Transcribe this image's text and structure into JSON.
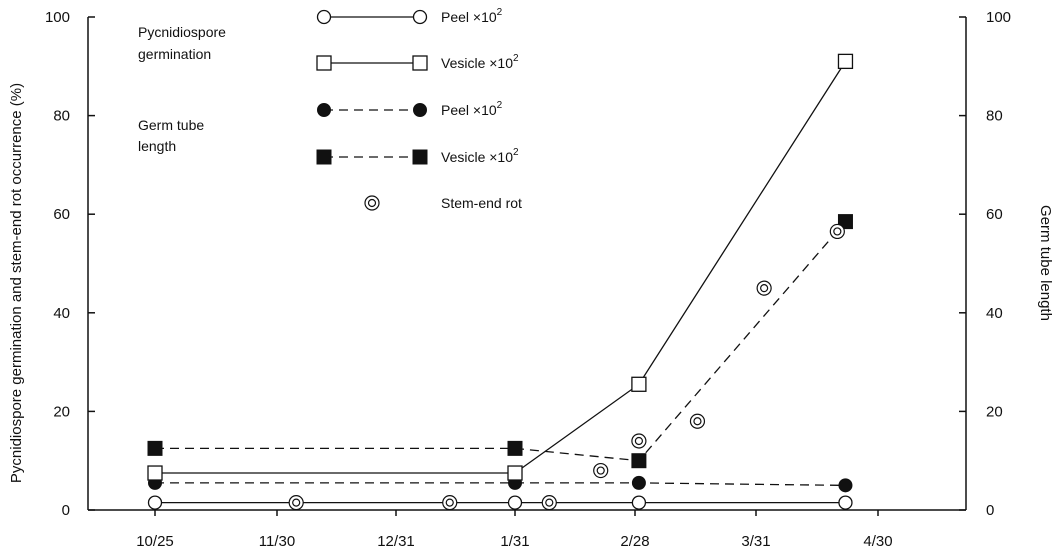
{
  "chart_data": {
    "type": "line",
    "ylabel": "Pycnidiospore germination and stem-end rot occurrence (%)",
    "y2label": "Germ tube length",
    "ylim": [
      0,
      100
    ],
    "y2lim": [
      0,
      100
    ],
    "y_ticks": [
      "0",
      "20",
      "40",
      "60",
      "80",
      "100"
    ],
    "y2_ticks": [
      "0",
      "20",
      "40",
      "60",
      "80",
      "100"
    ],
    "x_ticks": [
      "10/25",
      "11/30",
      "12/31",
      "1/31",
      "2/28",
      "3/31",
      "4/30"
    ],
    "legend": {
      "group_pycnidiospore": "Pycnidiospore germination",
      "group_germ_tube_line1": "Germ tube",
      "group_germ_tube_line2": "length",
      "entries": [
        {
          "label": "Peel ×10",
          "sup": "2",
          "marker": "open-circle",
          "line": "solid"
        },
        {
          "label": "Vesicle ×10",
          "sup": "2",
          "marker": "open-square",
          "line": "solid"
        },
        {
          "label": "Peel ×10",
          "sup": "2",
          "marker": "filled-circle",
          "line": "dashed"
        },
        {
          "label": "Vesicle ×10",
          "sup": "2",
          "marker": "filled-square",
          "line": "dashed"
        },
        {
          "label": "Stem-end rot",
          "sup": "",
          "marker": "double-circle",
          "line": "none"
        }
      ]
    },
    "series": [
      {
        "key": "germ_peel",
        "marker": "open-circle",
        "line": "solid",
        "x": [
          "10/25",
          "1/31",
          "3/1",
          "4/22"
        ],
        "y": [
          1.5,
          1.5,
          1.5,
          1.5
        ]
      },
      {
        "key": "germ_vesicle",
        "marker": "open-square",
        "line": "solid",
        "x": [
          "10/25",
          "1/31",
          "3/1",
          "4/22"
        ],
        "y": [
          7.5,
          7.5,
          25.5,
          91
        ]
      },
      {
        "key": "tube_peel",
        "marker": "filled-circle",
        "line": "dashed",
        "x": [
          "10/25",
          "1/31",
          "3/1",
          "4/22"
        ],
        "y": [
          5.5,
          5.5,
          5.5,
          5
        ]
      },
      {
        "key": "tube_vesicle",
        "marker": "filled-square",
        "line": "dashed",
        "x": [
          "10/25",
          "1/31",
          "3/1",
          "4/22"
        ],
        "y": [
          12.5,
          12.5,
          10,
          58.5
        ]
      },
      {
        "key": "stem_end_rot",
        "marker": "double-circle",
        "line": "none",
        "x": [
          "12/5",
          "1/14",
          "2/8",
          "2/20",
          "3/1",
          "3/16",
          "4/2",
          "4/20"
        ],
        "y": [
          1.5,
          1.5,
          1.5,
          8,
          14,
          18,
          45,
          56.5
        ]
      }
    ]
  }
}
